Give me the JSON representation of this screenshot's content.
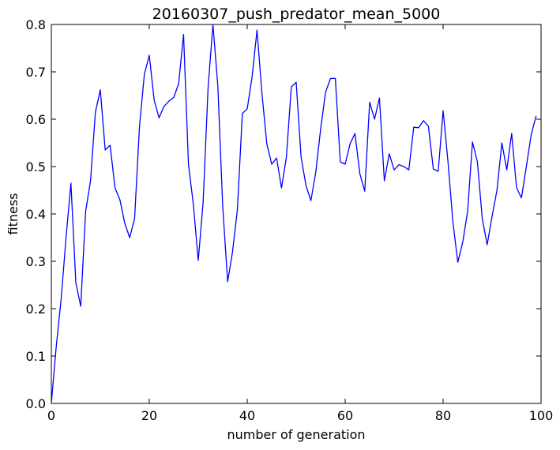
{
  "chart_data": {
    "type": "line",
    "title": "20160307_push_predator_mean_5000",
    "xlabel": "number of generation",
    "ylabel": "fitness",
    "xlim": [
      0,
      100
    ],
    "ylim": [
      0.0,
      0.8
    ],
    "x_ticks": [
      "0",
      "20",
      "40",
      "60",
      "80",
      "100"
    ],
    "y_ticks": [
      "0.0",
      "0.1",
      "0.2",
      "0.3",
      "0.4",
      "0.5",
      "0.6",
      "0.7",
      "0.8"
    ],
    "grid": false,
    "legend": "none",
    "series": [
      {
        "color": "#0000ff",
        "x": [
          0,
          1,
          2,
          3,
          4,
          5,
          6,
          7,
          8,
          9,
          10,
          11,
          12,
          13,
          14,
          15,
          16,
          17,
          18,
          19,
          20,
          21,
          22,
          23,
          24,
          25,
          26,
          27,
          28,
          29,
          30,
          31,
          32,
          33,
          34,
          35,
          36,
          37,
          38,
          39,
          40,
          41,
          42,
          43,
          44,
          45,
          46,
          47,
          48,
          49,
          50,
          51,
          52,
          53,
          54,
          55,
          56,
          57,
          58,
          59,
          60,
          61,
          62,
          63,
          64,
          65,
          66,
          67,
          68,
          69,
          70,
          71,
          72,
          73,
          74,
          75,
          76,
          77,
          78,
          79,
          80,
          81,
          82,
          83,
          84,
          85,
          86,
          87,
          88,
          89,
          90,
          91,
          92,
          93,
          94,
          95,
          96,
          97,
          98,
          99
        ],
        "y": [
          0.0,
          0.12,
          0.22,
          0.35,
          0.465,
          0.255,
          0.205,
          0.405,
          0.47,
          0.615,
          0.662,
          0.535,
          0.545,
          0.455,
          0.43,
          0.38,
          0.35,
          0.39,
          0.585,
          0.695,
          0.735,
          0.64,
          0.603,
          0.627,
          0.638,
          0.646,
          0.675,
          0.779,
          0.505,
          0.42,
          0.302,
          0.425,
          0.665,
          0.8,
          0.67,
          0.415,
          0.257,
          0.32,
          0.41,
          0.612,
          0.622,
          0.69,
          0.788,
          0.655,
          0.548,
          0.505,
          0.518,
          0.455,
          0.52,
          0.668,
          0.678,
          0.52,
          0.46,
          0.428,
          0.488,
          0.58,
          0.657,
          0.686,
          0.686,
          0.51,
          0.505,
          0.548,
          0.57,
          0.485,
          0.448,
          0.636,
          0.6,
          0.645,
          0.47,
          0.527,
          0.493,
          0.504,
          0.5,
          0.493,
          0.583,
          0.582,
          0.597,
          0.585,
          0.495,
          0.49,
          0.618,
          0.51,
          0.383,
          0.298,
          0.34,
          0.405,
          0.552,
          0.51,
          0.39,
          0.335,
          0.395,
          0.45,
          0.55,
          0.493,
          0.57,
          0.455,
          0.434,
          0.5,
          0.568,
          0.607
        ]
      }
    ]
  }
}
